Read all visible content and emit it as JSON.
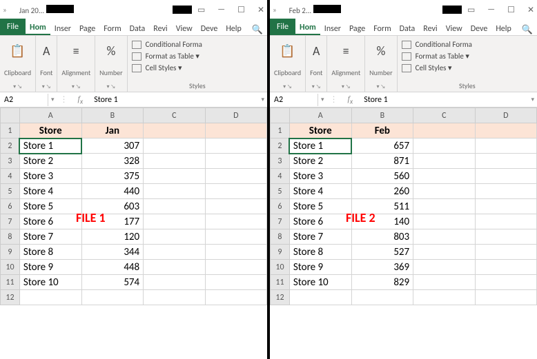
{
  "windows": [
    {
      "title": "Jan 20...",
      "overlay": "FILE 1",
      "namebox": "A2",
      "formula": "Store 1",
      "selected": "A2",
      "headers": [
        "Store",
        "Jan"
      ],
      "rows": [
        [
          "Store 1",
          "307"
        ],
        [
          "Store 2",
          "328"
        ],
        [
          "Store 3",
          "375"
        ],
        [
          "Store 4",
          "440"
        ],
        [
          "Store 5",
          "603"
        ],
        [
          "Store 6",
          "177"
        ],
        [
          "Store 7",
          "120"
        ],
        [
          "Store 8",
          "344"
        ],
        [
          "Store 9",
          "448"
        ],
        [
          "Store 10",
          "574"
        ]
      ]
    },
    {
      "title": "Feb 2...",
      "overlay": "FILE 2",
      "namebox": "A2",
      "formula": "Store 1",
      "selected": "A2",
      "headers": [
        "Store",
        "Feb"
      ],
      "rows": [
        [
          "Store 1",
          "657"
        ],
        [
          "Store 2",
          "871"
        ],
        [
          "Store 3",
          "560"
        ],
        [
          "Store 4",
          "260"
        ],
        [
          "Store 5",
          "511"
        ],
        [
          "Store 6",
          "140"
        ],
        [
          "Store 7",
          "803"
        ],
        [
          "Store 8",
          "527"
        ],
        [
          "Store 9",
          "369"
        ],
        [
          "Store 10",
          "829"
        ]
      ]
    }
  ],
  "tabs": [
    "File",
    "Hom",
    "Inser",
    "Page",
    "Form",
    "Data",
    "Revi",
    "View",
    "Deve",
    "Help"
  ],
  "ribbon_groups": [
    "Clipboard",
    "Font",
    "Alignment",
    "Number"
  ],
  "ribbon_icons": [
    "📋",
    "A",
    "≡",
    "%"
  ],
  "styles": [
    "Conditional Forma",
    "Format as Table ▾",
    "Cell Styles ▾"
  ],
  "styles_label": "Styles",
  "cols": [
    "A",
    "B",
    "C",
    "D"
  ],
  "colors": {
    "excel_green": "#217346",
    "header_fill": "#fce4d6",
    "overlay": "#ff0000"
  }
}
